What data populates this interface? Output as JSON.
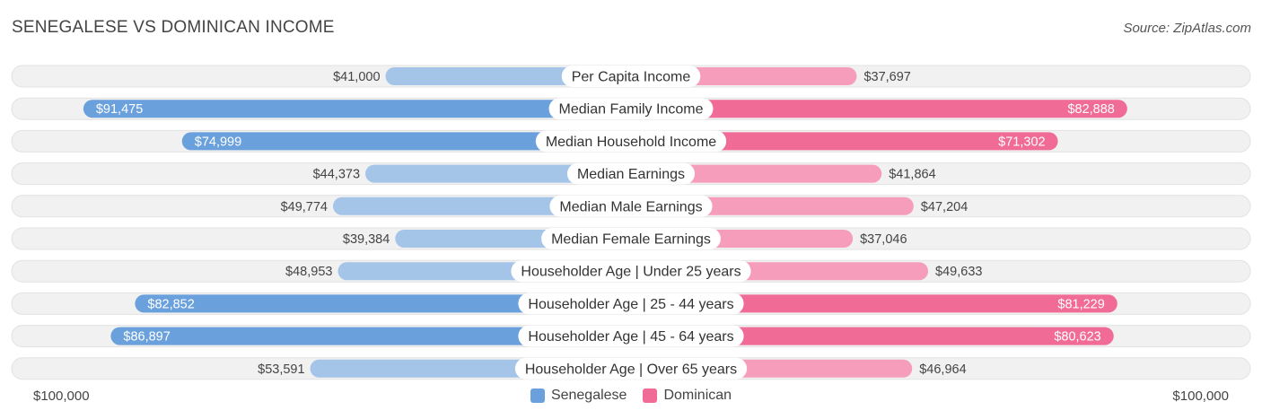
{
  "header": {
    "title": "SENEGALESE VS DOMINICAN INCOME",
    "source": "Source: ZipAtlas.com"
  },
  "chart_data": {
    "type": "bar",
    "orientation": "horizontal-diverging",
    "title": "SENEGALESE VS DOMINICAN INCOME",
    "categories": [
      "Per Capita Income",
      "Median Family Income",
      "Median Household Income",
      "Median Earnings",
      "Median Male Earnings",
      "Median Female Earnings",
      "Householder Age | Under 25 years",
      "Householder Age | 25 - 44 years",
      "Householder Age | 45 - 64 years",
      "Householder Age | Over 65 years"
    ],
    "series": [
      {
        "name": "Senegalese",
        "side": "left",
        "values": [
          41000,
          91475,
          74999,
          44373,
          49774,
          39384,
          48953,
          82852,
          86897,
          53591
        ],
        "labels": [
          "$41,000",
          "$91,475",
          "$74,999",
          "$44,373",
          "$49,774",
          "$39,384",
          "$48,953",
          "$82,852",
          "$86,897",
          "$53,591"
        ]
      },
      {
        "name": "Dominican",
        "side": "right",
        "values": [
          37697,
          82888,
          71302,
          41864,
          47204,
          37046,
          49633,
          81229,
          80623,
          46964
        ],
        "labels": [
          "$37,697",
          "$82,888",
          "$71,302",
          "$41,864",
          "$47,204",
          "$37,046",
          "$49,633",
          "$81,229",
          "$80,623",
          "$46,964"
        ]
      }
    ],
    "axis": {
      "max": 100000,
      "left_label": "$100,000",
      "right_label": "$100,000"
    },
    "colors": {
      "senegalese_light": "#a4c4e8",
      "senegalese_dark": "#6aa1dc",
      "dominican_light": "#f59dba",
      "dominican_dark": "#f06b95",
      "track": "#f1f1f1"
    },
    "legend": {
      "position": "bottom-center"
    }
  }
}
